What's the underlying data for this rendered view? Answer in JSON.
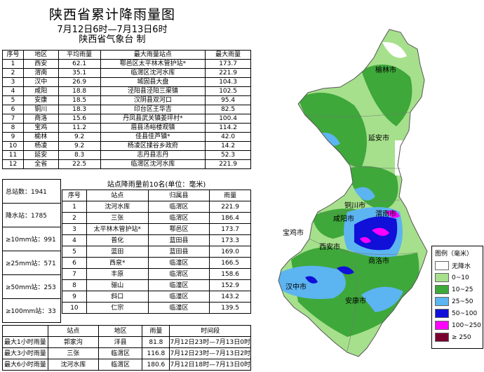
{
  "title": "陕西省累计降雨量图",
  "subtitle": "7月12日6时—7月13日6时",
  "source": "陕西省气象台  制",
  "table1": {
    "headers": [
      "序号",
      "地区",
      "平均雨量",
      "最大雨量站点",
      "最大雨量"
    ],
    "rows": [
      [
        "1",
        "西安",
        "62.1",
        "鄠邑区太平林木管护站*",
        "173.7"
      ],
      [
        "2",
        "渭南",
        "35.1",
        "临渭区沈河水库",
        "221.9"
      ],
      [
        "3",
        "汉中",
        "26.9",
        "城固县大盘",
        "104.3"
      ],
      [
        "4",
        "咸阳",
        "18.8",
        "泾阳县泾阳三渠镇",
        "102.5"
      ],
      [
        "5",
        "安康",
        "18.5",
        "汉阴县双河口",
        "95.4"
      ],
      [
        "6",
        "铜川",
        "18.3",
        "印台区王华吉",
        "82.5"
      ],
      [
        "7",
        "商洛",
        "15.6",
        "丹凤县武关镇姜坪村*",
        "100.4"
      ],
      [
        "8",
        "宝鸡",
        "11.2",
        "眉县汤峪楼观镇",
        "114.2"
      ],
      [
        "9",
        "榆林",
        "9.2",
        "佳县佳芦镇*",
        "42.0"
      ],
      [
        "10",
        "杨凌",
        "9.2",
        "杨凌区揉谷乡政府",
        "14.2"
      ],
      [
        "11",
        "延安",
        "8.3",
        "志丹县志丹",
        "52.3"
      ],
      [
        "12",
        "全省",
        "22.5",
        "临渭区沈河水库",
        "221.9"
      ]
    ]
  },
  "summary": [
    "总站数：1941",
    "降水站：1785",
    "≥10mm站：991",
    "≥25mm站：571",
    "≥50mm站：253",
    "≥100mm站：33"
  ],
  "top10": {
    "title": "站点降雨量前10名(单位：毫米)",
    "headers": [
      "序号",
      "站点",
      "归属县",
      "雨量"
    ],
    "rows": [
      [
        "1",
        "沈河水库",
        "临渭区",
        "221.9"
      ],
      [
        "2",
        "三张",
        "临渭区",
        "186.4"
      ],
      [
        "3",
        "太平林木管护站*",
        "鄠邑区",
        "173.7"
      ],
      [
        "4",
        "普化",
        "蓝田县",
        "173.3"
      ],
      [
        "5",
        "蓝田",
        "蓝田县",
        "169.0"
      ],
      [
        "6",
        "西泉*",
        "临潼区",
        "166.5"
      ],
      [
        "7",
        "丰原",
        "临渭区",
        "158.6"
      ],
      [
        "8",
        "骊山",
        "临潼区",
        "152.9"
      ],
      [
        "9",
        "斜口",
        "临潼区",
        "143.2"
      ],
      [
        "10",
        "仁宗",
        "临潼区",
        "139.5"
      ]
    ]
  },
  "hourly": {
    "headers": [
      "",
      "站点",
      "地区",
      "雨量",
      "时间段"
    ],
    "rows": [
      [
        "最大1小时雨量",
        "郭家沟",
        "洋县",
        "81.8",
        "7月12日23时—7月13日0时"
      ],
      [
        "最大3小时雨量",
        "三张",
        "临渭区",
        "116.8",
        "7月12日23时—7月13日2时"
      ],
      [
        "最大6小时雨量",
        "沈河水库",
        "临渭区",
        "180.6",
        "7月12日18时—7月13日0时"
      ]
    ]
  },
  "map_labels": [
    "榆林市",
    "延安市",
    "铜川市",
    "渭南市",
    "咸阳市",
    "宝鸡市",
    "西安市",
    "商洛市",
    "汉中市",
    "安康市"
  ],
  "legend": {
    "title": "图例（毫米）",
    "items": [
      {
        "label": "无降水",
        "color": "#ffffff"
      },
      {
        "label": "0~10",
        "color": "#a6e08c"
      },
      {
        "label": "10~25",
        "color": "#3ea83a"
      },
      {
        "label": "25~50",
        "color": "#5cb4f0"
      },
      {
        "label": "50~100",
        "color": "#1010d8"
      },
      {
        "label": "100~250",
        "color": "#ff00ff"
      },
      {
        "label": "≥ 250",
        "color": "#7a0030"
      }
    ]
  }
}
